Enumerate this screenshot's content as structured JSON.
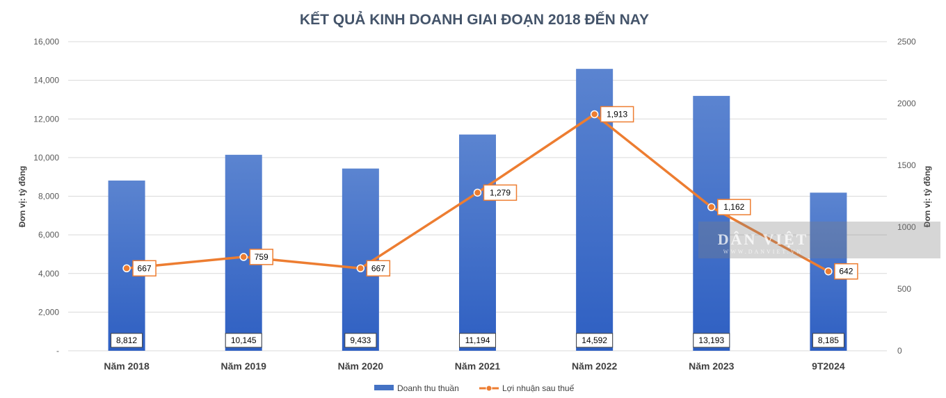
{
  "chart_data": {
    "type": "bar",
    "title": "KẾT QUẢ KINH DOANH GIAI ĐOẠN 2018 ĐẾN NAY",
    "categories": [
      "Năm 2018",
      "Năm 2019",
      "Năm 2020",
      "Năm 2021",
      "Năm 2022",
      "Năm 2023",
      "9T2024"
    ],
    "ylabel": "Đơn vị: tỷ đồng",
    "y2label": "Đơn vị: tỷ đồng",
    "ylim": [
      0,
      16000
    ],
    "y2lim": [
      0,
      2500
    ],
    "yticks": [
      "-",
      "2,000",
      "4,000",
      "6,000",
      "8,000",
      "10,000",
      "12,000",
      "14,000",
      "16,000"
    ],
    "y2ticks": [
      "0",
      "500",
      "1000",
      "1500",
      "2000",
      "2500"
    ],
    "grid": true,
    "legend_position": "bottom",
    "series": [
      {
        "name": "Doanh thu thuần",
        "type": "bar",
        "axis": "left",
        "color": "#4472c4",
        "values": [
          8812,
          10145,
          9433,
          11194,
          14592,
          13193,
          8185
        ],
        "labels": [
          "8,812",
          "10,145",
          "9,433",
          "11,194",
          "14,592",
          "13,193",
          "8,185"
        ]
      },
      {
        "name": "Lợi nhuận sau thuế",
        "type": "line",
        "axis": "right",
        "color": "#ed7d31",
        "values": [
          667,
          759,
          667,
          1279,
          1913,
          1162,
          642
        ],
        "labels": [
          "667",
          "759",
          "667",
          "1,279",
          "1,913",
          "1,162",
          "642"
        ]
      }
    ]
  },
  "watermark": {
    "brand": "DÂN VIỆT",
    "site": "WWW.DANVIET.VN"
  }
}
